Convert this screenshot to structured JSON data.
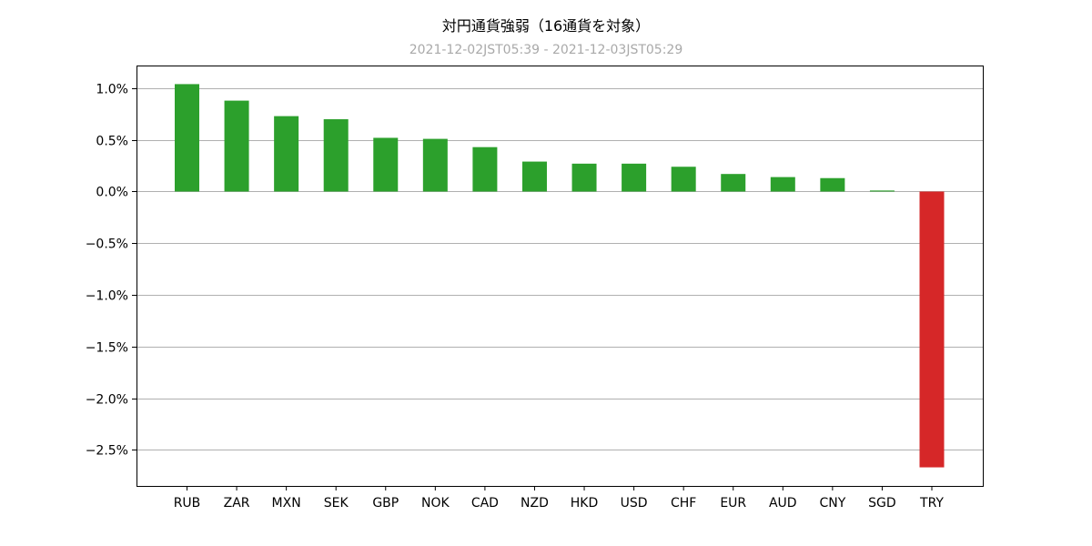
{
  "chart_data": {
    "type": "bar",
    "title": "対円通貨強弱（16通貨を対象）",
    "subtitle": "2021-12-02JST05:39 - 2021-12-03JST05:29",
    "xlabel": "",
    "ylabel": "",
    "categories": [
      "RUB",
      "ZAR",
      "MXN",
      "SEK",
      "GBP",
      "NOK",
      "CAD",
      "NZD",
      "HKD",
      "USD",
      "CHF",
      "EUR",
      "AUD",
      "CNY",
      "SGD",
      "TRY"
    ],
    "values": [
      1.04,
      0.88,
      0.73,
      0.7,
      0.52,
      0.51,
      0.43,
      0.29,
      0.27,
      0.27,
      0.24,
      0.17,
      0.14,
      0.13,
      0.01,
      -2.67
    ],
    "ylim": [
      -2.85,
      1.22
    ],
    "yticks": [
      1.0,
      0.5,
      0.0,
      -0.5,
      -1.0,
      -1.5,
      -2.0,
      -2.5
    ],
    "ytick_labels": [
      "1.0%",
      "0.5%",
      "0.0%",
      "−0.5%",
      "−1.0%",
      "−1.5%",
      "−2.0%",
      "−2.5%"
    ],
    "grid": true,
    "colors": {
      "positive": "#2ca02c",
      "negative": "#d62728",
      "grid": "#b0b0b0",
      "subtitle": "#a9a9a9"
    }
  }
}
